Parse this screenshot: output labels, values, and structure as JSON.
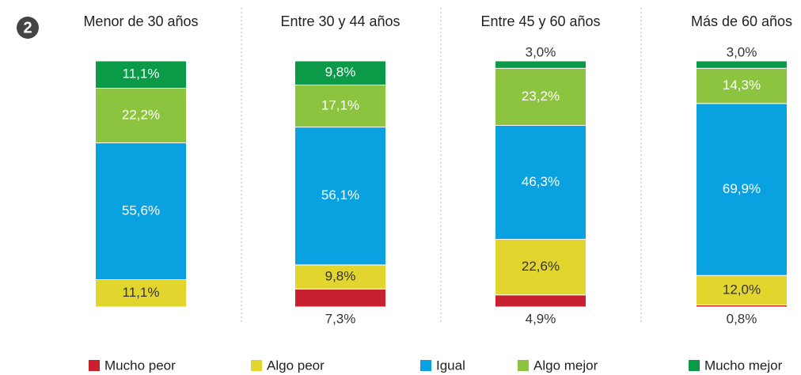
{
  "badge": "2",
  "chart_data": {
    "type": "stacked_bar",
    "categories": [
      "Menor de 30 años",
      "Entre 30 y 44 años",
      "Entre 45 y 60 años",
      "Más de 60 años"
    ],
    "series": [
      {
        "name": "Mucho peor",
        "color": "#c8202f",
        "values": [
          null,
          7.3,
          4.9,
          0.8
        ],
        "value_labels": [
          null,
          "7,3%",
          "4,9%",
          "0,8%"
        ]
      },
      {
        "name": "Algo peor",
        "color": "#e2d52e",
        "values": [
          11.1,
          9.8,
          22.6,
          12.0
        ],
        "value_labels": [
          "11,1%",
          "9,8%",
          "22,6%",
          "12,0%"
        ]
      },
      {
        "name": "Igual",
        "color": "#0aa1e0",
        "values": [
          55.6,
          56.1,
          46.3,
          69.9
        ],
        "value_labels": [
          "55,6%",
          "56,1%",
          "46,3%",
          "69,9%"
        ]
      },
      {
        "name": "Algo mejor",
        "color": "#8dc43f",
        "values": [
          22.2,
          17.1,
          23.2,
          14.3
        ],
        "value_labels": [
          "22,2%",
          "17,1%",
          "23,2%",
          "14,3%"
        ]
      },
      {
        "name": "Mucho mejor",
        "color": "#0a9a48",
        "values": [
          11.1,
          9.8,
          3.0,
          3.0
        ],
        "value_labels": [
          "11,1%",
          "9,8%",
          "3,0%",
          "3,0%"
        ]
      }
    ]
  }
}
